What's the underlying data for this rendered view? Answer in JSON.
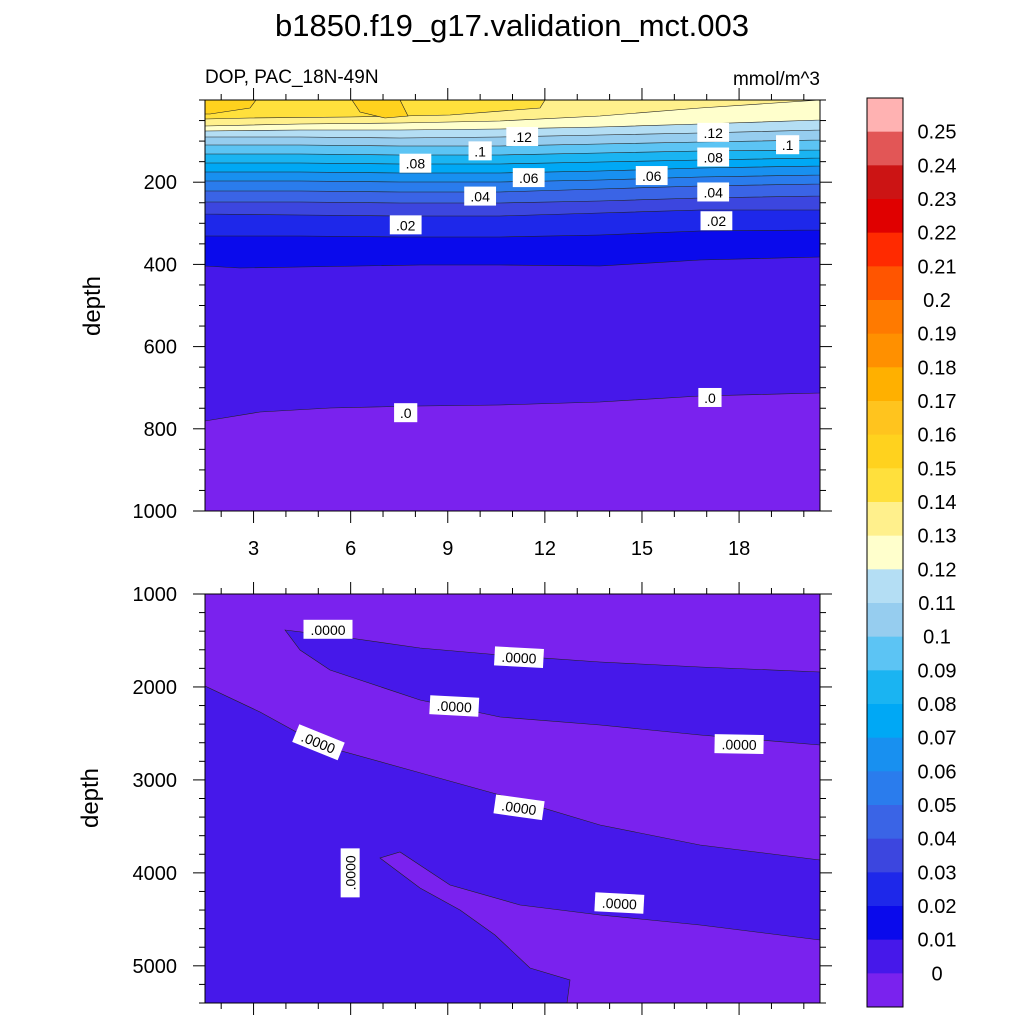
{
  "chart_data": [
    {
      "type": "contour",
      "title": "b1850.f19_g17.validation_mct.003",
      "subtitle_left": "DOP, PAC_18N-49N",
      "subtitle_right": "mmol/m^3",
      "ylabel": "depth",
      "xlim": [
        1.5,
        20.5
      ],
      "ylim": [
        1000,
        0
      ],
      "x_ticks": [
        "3",
        "6",
        "9",
        "12",
        "15",
        "18"
      ],
      "x_tick_values": [
        3,
        6,
        9,
        12,
        15,
        18
      ],
      "y_ticks": [
        "200",
        "400",
        "600",
        "800",
        "1000"
      ],
      "y_tick_values": [
        200,
        400,
        600,
        800,
        1000
      ],
      "contour_labels": [
        {
          "text": ".12",
          "x": 11.3,
          "y": 90
        },
        {
          "text": ".12",
          "x": 17.2,
          "y": 80
        },
        {
          "text": ".1",
          "x": 10.0,
          "y": 125
        },
        {
          "text": ".1",
          "x": 19.5,
          "y": 110
        },
        {
          "text": ".08",
          "x": 8.0,
          "y": 155
        },
        {
          "text": ".08",
          "x": 17.2,
          "y": 140
        },
        {
          "text": ".06",
          "x": 11.5,
          "y": 190
        },
        {
          "text": ".06",
          "x": 15.3,
          "y": 185
        },
        {
          "text": ".04",
          "x": 10.0,
          "y": 235
        },
        {
          "text": ".04",
          "x": 17.2,
          "y": 225
        },
        {
          "text": ".02",
          "x": 7.7,
          "y": 305
        },
        {
          "text": ".02",
          "x": 17.3,
          "y": 295
        },
        {
          "text": ".0",
          "x": 7.7,
          "y": 762
        },
        {
          "text": ".0",
          "x": 17.1,
          "y": 725
        }
      ]
    },
    {
      "type": "contour",
      "ylabel": "depth",
      "xlim": [
        1.5,
        20.5
      ],
      "ylim": [
        5400,
        1000
      ],
      "x_tick_values": [
        3,
        6,
        9,
        12,
        15,
        18
      ],
      "y_ticks": [
        "1000",
        "2000",
        "3000",
        "4000",
        "5000"
      ],
      "y_tick_values": [
        1000,
        2000,
        3000,
        4000,
        5000
      ],
      "contour_labels": [
        {
          "text": ".0000",
          "x": 5.3,
          "y": 1385,
          "rot": 0
        },
        {
          "text": ".0000",
          "x": 11.2,
          "y": 1685,
          "rot": 3
        },
        {
          "text": ".0000",
          "x": 9.2,
          "y": 2210,
          "rot": 3
        },
        {
          "text": ".0000",
          "x": 18.0,
          "y": 2620,
          "rot": 1
        },
        {
          "text": ".0000",
          "x": 5.0,
          "y": 2600,
          "rot": 22
        },
        {
          "text": ".0000",
          "x": 11.2,
          "y": 3300,
          "rot": 8
        },
        {
          "text": ".0000",
          "x": 6.0,
          "y": 4000,
          "rot": -90
        },
        {
          "text": ".0000",
          "x": 14.3,
          "y": 4330,
          "rot": 3
        }
      ]
    },
    {
      "type": "colorbar",
      "levels": [
        "0.25",
        "0.24",
        "0.23",
        "0.22",
        "0.21",
        "0.2",
        "0.19",
        "0.18",
        "0.17",
        "0.16",
        "0.15",
        "0.14",
        "0.13",
        "0.12",
        "0.11",
        "0.1",
        "0.09",
        "0.08",
        "0.07",
        "0.06",
        "0.05",
        "0.04",
        "0.03",
        "0.02",
        "0.01",
        "0"
      ],
      "colors": [
        "#ffb2b2",
        "#e25656",
        "#cc1414",
        "#e00000",
        "#ff2a00",
        "#ff5500",
        "#ff7a00",
        "#ff9000",
        "#ffb000",
        "#ffc41e",
        "#ffd21e",
        "#ffe03c",
        "#fff08c",
        "#ffffcc",
        "#b4def4",
        "#96cdef",
        "#5cc4f4",
        "#1ab4f2",
        "#00a8f5",
        "#1890f0",
        "#2a7ced",
        "#3a64e6",
        "#3c46df",
        "#1e28ea",
        "#0a0aec",
        "#4618ea",
        "#7a22ee"
      ]
    }
  ]
}
